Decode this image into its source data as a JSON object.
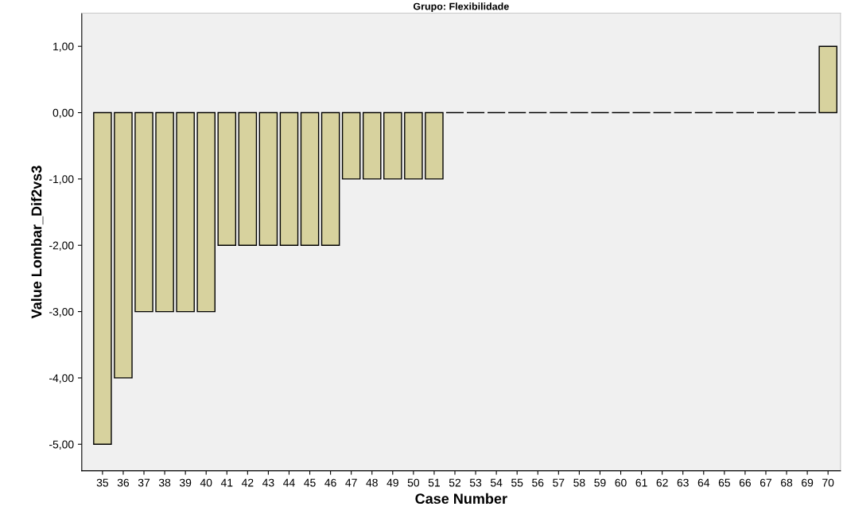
{
  "chart_data": {
    "type": "bar",
    "title": "Grupo: Flexibilidade",
    "xlabel": "Case Number",
    "ylabel": "Value Lombar_Dif2vs3",
    "categories": [
      "35",
      "36",
      "37",
      "38",
      "39",
      "40",
      "41",
      "42",
      "43",
      "44",
      "45",
      "46",
      "47",
      "48",
      "49",
      "50",
      "51",
      "52",
      "53",
      "54",
      "55",
      "56",
      "57",
      "58",
      "59",
      "60",
      "61",
      "62",
      "63",
      "64",
      "65",
      "66",
      "67",
      "68",
      "69",
      "70"
    ],
    "values": [
      -5,
      -4,
      -3,
      -3,
      -3,
      -3,
      -2,
      -2,
      -2,
      -2,
      -2,
      -2,
      -1,
      -1,
      -1,
      -1,
      -1,
      0,
      0,
      0,
      0,
      0,
      0,
      0,
      0,
      0,
      0,
      0,
      0,
      0,
      0,
      0,
      0,
      0,
      0,
      1
    ],
    "colors": [
      "#d7d29e",
      "#d7d29e",
      "#d7d29e",
      "#d7d29e",
      "#d7d29e",
      "#d7d29e",
      "#d7d29e",
      "#d7d29e",
      "#d7d29e",
      "#d7d29e",
      "#d7d29e",
      "#d7d29e",
      "#d7d29e",
      "#d7d29e",
      "#d7d29e",
      "#d7d29e",
      "#d7d29e",
      "#000000",
      "#000000",
      "#000000",
      "#000000",
      "#000000",
      "#000000",
      "#000000",
      "#000000",
      "#000000",
      "#000000",
      "#000000",
      "#000000",
      "#000000",
      "#000000",
      "#000000",
      "#000000",
      "#000000",
      "#000000",
      "#d7d29e"
    ],
    "ylim": [
      -5.4,
      1.5
    ],
    "yticks": [
      {
        "value": -5,
        "label": "-5,00"
      },
      {
        "value": -4,
        "label": "-4,00"
      },
      {
        "value": -3,
        "label": "-3,00"
      },
      {
        "value": -2,
        "label": "-2,00"
      },
      {
        "value": -1,
        "label": "-1,00"
      },
      {
        "value": 0,
        "label": "0,00"
      },
      {
        "value": 1,
        "label": "1,00"
      }
    ],
    "grid": false
  }
}
